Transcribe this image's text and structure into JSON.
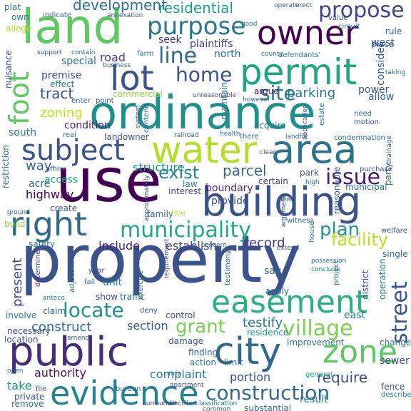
{
  "words": [
    {
      "text": "property",
      "color": "#3b528b"
    },
    {
      "text": "ordinance",
      "color": "#21908d"
    },
    {
      "text": "use",
      "color": "#440154"
    },
    {
      "text": "land",
      "color": "#5ec962"
    },
    {
      "text": "building",
      "color": "#3b528b"
    },
    {
      "text": "public",
      "color": "#472c7a"
    },
    {
      "text": "city",
      "color": "#31688e"
    },
    {
      "text": "zone",
      "color": "#5ec962"
    },
    {
      "text": "area",
      "color": "#2c728e"
    },
    {
      "text": "water",
      "color": "#b5de2b"
    },
    {
      "text": "evidence",
      "color": "#26828e"
    },
    {
      "text": "permit",
      "color": "#21a585"
    },
    {
      "text": "owner",
      "color": "#440154"
    },
    {
      "text": "lot",
      "color": "#3b528b"
    },
    {
      "text": "right",
      "color": "#31688e"
    },
    {
      "text": "easement",
      "color": "#2ab07f"
    },
    {
      "text": "subject",
      "color": "#3b528b"
    },
    {
      "text": "foot",
      "color": "#5ec962"
    },
    {
      "text": "purpose",
      "color": "#2a788e"
    },
    {
      "text": "municipality",
      "color": "#22a884"
    },
    {
      "text": "construction",
      "color": "#31688e"
    },
    {
      "text": "village",
      "color": "#7ad151"
    },
    {
      "text": "street",
      "color": "#3b528b"
    },
    {
      "text": "propose",
      "color": "#414487"
    },
    {
      "text": "site",
      "color": "#2a788e"
    },
    {
      "text": "line",
      "color": "#31688e"
    },
    {
      "text": "home",
      "color": "#3b528b"
    },
    {
      "text": "issue",
      "color": "#481a6c"
    },
    {
      "text": "locate",
      "color": "#21918c"
    },
    {
      "text": "plan",
      "color": "#1f988b"
    },
    {
      "text": "exist",
      "color": "#26828e"
    },
    {
      "text": "grant",
      "color": "#7ad151"
    },
    {
      "text": "facility",
      "color": "#bddf26"
    },
    {
      "text": "parcel",
      "color": "#31688e"
    },
    {
      "text": "residential",
      "color": "#1fa188"
    },
    {
      "text": "development",
      "color": "#2c728e"
    },
    {
      "text": "parking",
      "color": "#2a788e"
    },
    {
      "text": "tract",
      "color": "#3b528b"
    },
    {
      "text": "zoning",
      "color": "#c2df23"
    },
    {
      "text": "present",
      "color": "#3e4989"
    },
    {
      "text": "structure",
      "color": "#21918c"
    },
    {
      "text": "construct",
      "color": "#31688e"
    },
    {
      "text": "record",
      "color": "#443983"
    },
    {
      "text": "include",
      "color": "#482475"
    },
    {
      "text": "establish",
      "color": "#414487"
    },
    {
      "text": "testify",
      "color": "#2a788e"
    },
    {
      "text": "section",
      "color": "#355f8d"
    },
    {
      "text": "require",
      "color": "#3b528b"
    },
    {
      "text": "authority",
      "color": "#481467"
    },
    {
      "text": "complaint",
      "color": "#2a788e"
    },
    {
      "text": "portion",
      "color": "#3b528b"
    },
    {
      "text": "take",
      "color": "#1f988b"
    },
    {
      "text": "way",
      "color": "#31688e"
    },
    {
      "text": "highway",
      "color": "#440154"
    },
    {
      "text": "acre",
      "color": "#31688e"
    },
    {
      "text": "access",
      "color": "#22a884"
    },
    {
      "text": "boundary",
      "color": "#482878"
    },
    {
      "text": "provide",
      "color": "#3b528b"
    },
    {
      "text": "unit",
      "color": "#2a788e"
    },
    {
      "text": "road",
      "color": "#433e85"
    },
    {
      "text": "special",
      "color": "#2d708e"
    },
    {
      "text": "premise",
      "color": "#3b528b"
    },
    {
      "text": "condition",
      "color": "#481f70"
    },
    {
      "text": "south",
      "color": "#2a788e"
    },
    {
      "text": "plaintiffs",
      "color": "#404688"
    },
    {
      "text": "seek",
      "color": "#443983"
    },
    {
      "text": "north",
      "color": "#2c728e"
    },
    {
      "text": "west",
      "color": "#31688e"
    },
    {
      "text": "east",
      "color": "#2a788e"
    },
    {
      "text": "power",
      "color": "#3b528b"
    },
    {
      "text": "allow",
      "color": "#31688e"
    },
    {
      "text": "consider",
      "color": "#3b528b"
    },
    {
      "text": "maintain",
      "color": "#2a788e"
    },
    {
      "text": "argue",
      "color": "#481a6c"
    },
    {
      "text": "certain",
      "color": "#443983"
    },
    {
      "text": "park",
      "color": "#3b528b"
    },
    {
      "text": "municipal",
      "color": "#2c728e"
    },
    {
      "text": "law",
      "color": "#2a788e"
    },
    {
      "text": "interest",
      "color": "#3e4989"
    },
    {
      "text": "family",
      "color": "#31688e"
    },
    {
      "text": "title",
      "color": "#b8de29"
    },
    {
      "text": "say",
      "color": "#31688e"
    },
    {
      "text": "apply",
      "color": "#2a788e"
    },
    {
      "text": "show",
      "color": "#3b528b"
    },
    {
      "text": "traffic",
      "color": "#2c728e"
    },
    {
      "text": "deny",
      "color": "#3b528b"
    },
    {
      "text": "control",
      "color": "#3e4989"
    },
    {
      "text": "damage",
      "color": "#3b528b"
    },
    {
      "text": "finding",
      "color": "#31688e"
    },
    {
      "text": "action",
      "color": "#2a788e"
    },
    {
      "text": "limit",
      "color": "#31688e"
    },
    {
      "text": "residence",
      "color": "#1f988b"
    },
    {
      "text": "improvement",
      "color": "#2c728e"
    },
    {
      "text": "change",
      "color": "#2a788e"
    },
    {
      "text": "sewer",
      "color": "#3b528b"
    },
    {
      "text": "general",
      "color": "#22a884"
    },
    {
      "text": "result",
      "color": "#2a788e"
    },
    {
      "text": "substantial",
      "color": "#31688e"
    },
    {
      "text": "fence",
      "color": "#3b528b"
    },
    {
      "text": "describe",
      "color": "#26828e"
    },
    {
      "text": "private",
      "color": "#3b528b"
    },
    {
      "text": "remove",
      "color": "#31688e"
    },
    {
      "text": "file",
      "color": "#3b528b"
    },
    {
      "text": "burden",
      "color": "#31688e"
    },
    {
      "text": "surround",
      "color": "#443983"
    },
    {
      "text": "decision",
      "color": "#3b528b"
    },
    {
      "text": "classification",
      "color": "#2a788e"
    },
    {
      "text": "common",
      "color": "#31688e"
    },
    {
      "text": "involve",
      "color": "#2a788e"
    },
    {
      "text": "necessary",
      "color": "#3b528b"
    },
    {
      "text": "claim",
      "color": "#31688e"
    },
    {
      "text": "location",
      "color": "#3b528b"
    },
    {
      "text": "safety",
      "color": "#2a788e"
    },
    {
      "text": "build",
      "color": "#8fd744"
    },
    {
      "text": "create",
      "color": "#3b528b"
    },
    {
      "text": "determine",
      "color": "#443983"
    },
    {
      "text": "adjacent",
      "color": "#31688e"
    },
    {
      "text": "year",
      "color": "#3b528b"
    },
    {
      "text": "fail",
      "color": "#2a788e"
    },
    {
      "text": "exercise",
      "color": "#31688e"
    },
    {
      "text": "requirement",
      "color": "#3b528b"
    },
    {
      "text": "testimony",
      "color": "#2a788e"
    },
    {
      "text": "project",
      "color": "#31688e"
    },
    {
      "text": "district",
      "color": "#3b528b"
    },
    {
      "text": "operation",
      "color": "#2a788e"
    },
    {
      "text": "single",
      "color": "#31688e"
    },
    {
      "text": "welfare",
      "color": "#3b528b"
    },
    {
      "text": "house",
      "color": "#2a788e"
    },
    {
      "text": "reasonable",
      "color": "#3b528b"
    },
    {
      "text": "party",
      "color": "#31688e"
    },
    {
      "text": "high",
      "color": "#2a788e"
    },
    {
      "text": "purchase",
      "color": "#3b528b"
    },
    {
      "text": "condemnation",
      "color": "#2a788e"
    },
    {
      "text": "landfill",
      "color": "#31688e"
    },
    {
      "text": "application",
      "color": "#3b528b"
    },
    {
      "text": "estate",
      "color": "#2a788e"
    },
    {
      "text": "need",
      "color": "#31688e"
    },
    {
      "text": "motion",
      "color": "#3b528b"
    },
    {
      "text": "taking",
      "color": "#2a788e"
    },
    {
      "text": "rule",
      "color": "#31688e"
    },
    {
      "text": "place",
      "color": "#3b528b"
    },
    {
      "text": "defendants'",
      "color": "#2a788e"
    },
    {
      "text": "county",
      "color": "#31688e"
    },
    {
      "text": "value",
      "color": "#3b528b"
    },
    {
      "text": "circuit",
      "color": "#2a788e"
    },
    {
      "text": "operate",
      "color": "#31688e"
    },
    {
      "text": "erect",
      "color": "#3b528b"
    },
    {
      "text": "plat",
      "color": "#2a788e"
    },
    {
      "text": "indicate",
      "color": "#31688e"
    },
    {
      "text": "annexation",
      "color": "#3b528b"
    },
    {
      "text": "own",
      "color": "#2a788e"
    },
    {
      "text": "allege",
      "color": "#b5de2b"
    },
    {
      "text": "support",
      "color": "#3b528b"
    },
    {
      "text": "contain",
      "color": "#31688e"
    },
    {
      "text": "farm",
      "color": "#2a788e"
    },
    {
      "text": "business",
      "color": "#31688e"
    },
    {
      "text": "nuisance",
      "color": "#3b528b"
    },
    {
      "text": "effect",
      "color": "#2a788e"
    },
    {
      "text": "enter",
      "color": "#31688e"
    },
    {
      "text": "point",
      "color": "#3b528b"
    },
    {
      "text": "commercial",
      "color": "#8fd744"
    },
    {
      "text": "restriction",
      "color": "#31688e"
    },
    {
      "text": "real",
      "color": "#2a788e"
    },
    {
      "text": "landowner",
      "color": "#3b528b"
    },
    {
      "text": "railroad",
      "color": "#31688e"
    },
    {
      "text": "health",
      "color": "#2a788e"
    },
    {
      "text": "system",
      "color": "#3b528b"
    },
    {
      "text": "contend",
      "color": "#31688e"
    },
    {
      "text": "acquire",
      "color": "#2a788e"
    },
    {
      "text": "unreasonable",
      "color": "#3b528b"
    },
    {
      "text": "however",
      "color": "#31688e"
    },
    {
      "text": "there",
      "color": "#2a788e"
    },
    {
      "text": "approximately",
      "color": "#3b528b"
    },
    {
      "text": "witness",
      "color": "#31688e"
    },
    {
      "text": "concern",
      "color": "#2a788e"
    },
    {
      "text": "extend",
      "color": "#3b528b"
    },
    {
      "text": "possession",
      "color": "#31688e"
    },
    {
      "text": "conclude",
      "color": "#2a788e"
    },
    {
      "text": "argument",
      "color": "#3b528b"
    },
    {
      "text": "new",
      "color": "#31688e"
    },
    {
      "text": "strip",
      "color": "#2a788e"
    },
    {
      "text": "apartment",
      "color": "#3b528b"
    },
    {
      "text": "amend",
      "color": "#31688e"
    },
    {
      "text": "open",
      "color": "#2a788e"
    },
    {
      "text": "affirm",
      "color": "#3b528b"
    },
    {
      "text": "ground",
      "color": "#31688e"
    },
    {
      "text": "anteco",
      "color": "#2a788e"
    },
    {
      "text": "clear",
      "color": "#3b528b"
    },
    {
      "text": "drainage",
      "color": "#31688e"
    },
    {
      "text": "good",
      "color": "#2a788e"
    }
  ]
}
